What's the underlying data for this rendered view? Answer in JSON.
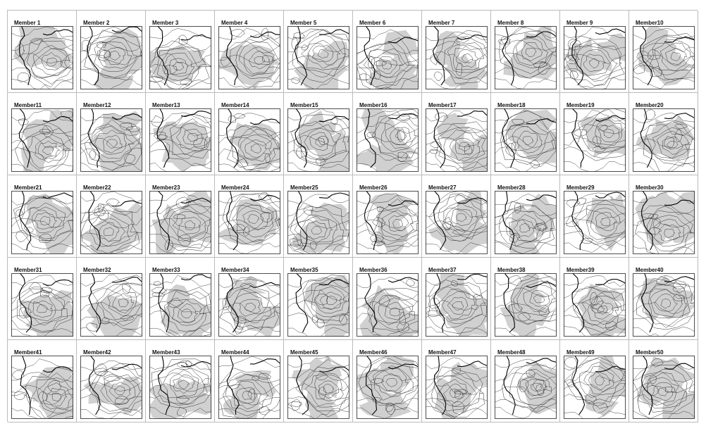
{
  "panels": [
    {
      "label": "Member 1"
    },
    {
      "label": "Member 2"
    },
    {
      "label": "Member 3"
    },
    {
      "label": "Member 4"
    },
    {
      "label": "Member 5"
    },
    {
      "label": "Member 6"
    },
    {
      "label": "Member 7"
    },
    {
      "label": "Member 8"
    },
    {
      "label": "Member 9"
    },
    {
      "label": "Member10"
    },
    {
      "label": "Member11"
    },
    {
      "label": "Member12"
    },
    {
      "label": "Member13"
    },
    {
      "label": "Member14"
    },
    {
      "label": "Member15"
    },
    {
      "label": "Member16"
    },
    {
      "label": "Member17"
    },
    {
      "label": "Member18"
    },
    {
      "label": "Member19"
    },
    {
      "label": "Member20"
    },
    {
      "label": "Member21"
    },
    {
      "label": "Member22"
    },
    {
      "label": "Member23"
    },
    {
      "label": "Member24"
    },
    {
      "label": "Member25"
    },
    {
      "label": "Member26"
    },
    {
      "label": "Member27"
    },
    {
      "label": "Member28"
    },
    {
      "label": "Member29"
    },
    {
      "label": "Member30"
    },
    {
      "label": "Member31"
    },
    {
      "label": "Member32"
    },
    {
      "label": "Member33"
    },
    {
      "label": "Member34"
    },
    {
      "label": "Member35"
    },
    {
      "label": "Member36"
    },
    {
      "label": "Member37"
    },
    {
      "label": "Member38"
    },
    {
      "label": "Member39"
    },
    {
      "label": "Member40"
    },
    {
      "label": "Member41"
    },
    {
      "label": "Member42"
    },
    {
      "label": "Member43"
    },
    {
      "label": "Member44"
    },
    {
      "label": "Member45"
    },
    {
      "label": "Member46"
    },
    {
      "label": "Member47"
    },
    {
      "label": "Member48"
    },
    {
      "label": "Member49"
    },
    {
      "label": "Member50"
    }
  ],
  "colors": {
    "shade": "#d0d0d0",
    "contour": "#333333",
    "bold_contour": "#000000",
    "frame": "#222222"
  },
  "icons": {
    "panel_map": "contour-map-icon"
  }
}
